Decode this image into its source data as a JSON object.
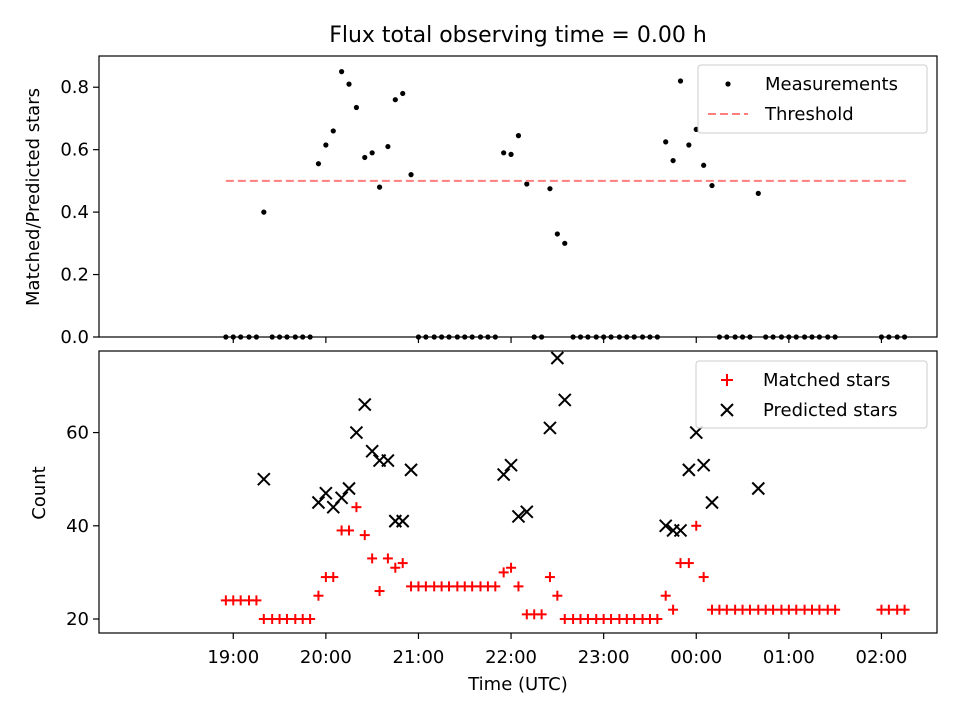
{
  "figure": {
    "title": "Flux total observing time = 0.00 h",
    "xlabel": "Time (UTC)",
    "x_ticks": [
      "19:00",
      "20:00",
      "21:00",
      "22:00",
      "23:00",
      "00:00",
      "01:00",
      "02:00"
    ]
  },
  "chart_data": [
    {
      "type": "scatter",
      "ylabel": "Matched/Predicted stars",
      "xlim_hours": [
        17.55,
        26.6
      ],
      "ylim": [
        0,
        0.9
      ],
      "y_ticks": [
        "0.0",
        "0.2",
        "0.4",
        "0.6",
        "0.8"
      ],
      "legend_position": "top-right",
      "legend": [
        "Measurements",
        "Threshold"
      ],
      "threshold": {
        "name": "Threshold",
        "value": 0.5,
        "x_range_hours": [
          18.92,
          26.27
        ],
        "color": "#ff7f7f"
      },
      "series": [
        {
          "name": "Measurements",
          "color": "#000000",
          "points": [
            [
              18.92,
              0
            ],
            [
              19.0,
              0
            ],
            [
              19.08,
              0
            ],
            [
              19.17,
              0
            ],
            [
              19.25,
              0
            ],
            [
              19.33,
              0.4
            ],
            [
              19.42,
              0
            ],
            [
              19.5,
              0
            ],
            [
              19.58,
              0
            ],
            [
              19.67,
              0
            ],
            [
              19.75,
              0
            ],
            [
              19.83,
              0
            ],
            [
              19.92,
              0.555
            ],
            [
              20.0,
              0.615
            ],
            [
              20.08,
              0.66
            ],
            [
              20.17,
              0.85
            ],
            [
              20.25,
              0.81
            ],
            [
              20.33,
              0.735
            ],
            [
              20.42,
              0.575
            ],
            [
              20.5,
              0.59
            ],
            [
              20.58,
              0.48
            ],
            [
              20.67,
              0.61
            ],
            [
              20.75,
              0.76
            ],
            [
              20.83,
              0.78
            ],
            [
              20.92,
              0.52
            ],
            [
              21.0,
              0
            ],
            [
              21.08,
              0
            ],
            [
              21.17,
              0
            ],
            [
              21.25,
              0
            ],
            [
              21.33,
              0
            ],
            [
              21.42,
              0
            ],
            [
              21.5,
              0
            ],
            [
              21.58,
              0
            ],
            [
              21.67,
              0
            ],
            [
              21.75,
              0
            ],
            [
              21.83,
              0
            ],
            [
              21.92,
              0.59
            ],
            [
              22.0,
              0.585
            ],
            [
              22.08,
              0.645
            ],
            [
              22.17,
              0.49
            ],
            [
              22.25,
              0
            ],
            [
              22.33,
              0
            ],
            [
              22.42,
              0.475
            ],
            [
              22.5,
              0.33
            ],
            [
              22.58,
              0.3
            ],
            [
              22.67,
              0
            ],
            [
              22.75,
              0
            ],
            [
              22.83,
              0
            ],
            [
              22.92,
              0
            ],
            [
              23.0,
              0
            ],
            [
              23.08,
              0
            ],
            [
              23.17,
              0
            ],
            [
              23.25,
              0
            ],
            [
              23.33,
              0
            ],
            [
              23.42,
              0
            ],
            [
              23.5,
              0
            ],
            [
              23.58,
              0
            ],
            [
              23.67,
              0.625
            ],
            [
              23.75,
              0.565
            ],
            [
              23.83,
              0.82
            ],
            [
              23.92,
              0.615
            ],
            [
              24.0,
              0.665
            ],
            [
              24.08,
              0.55
            ],
            [
              24.17,
              0.485
            ],
            [
              24.25,
              0
            ],
            [
              24.33,
              0
            ],
            [
              24.42,
              0
            ],
            [
              24.5,
              0
            ],
            [
              24.58,
              0
            ],
            [
              24.67,
              0.46
            ],
            [
              24.75,
              0
            ],
            [
              24.83,
              0
            ],
            [
              24.92,
              0
            ],
            [
              25.0,
              0
            ],
            [
              25.08,
              0
            ],
            [
              25.17,
              0
            ],
            [
              25.25,
              0
            ],
            [
              25.33,
              0
            ],
            [
              25.42,
              0
            ],
            [
              25.5,
              0
            ],
            [
              26.0,
              0
            ],
            [
              26.08,
              0
            ],
            [
              26.17,
              0
            ],
            [
              26.25,
              0
            ]
          ]
        }
      ]
    },
    {
      "type": "scatter",
      "ylabel": "Count",
      "xlim_hours": [
        17.55,
        26.6
      ],
      "ylim": [
        17,
        77.5
      ],
      "y_ticks": [
        "20",
        "40",
        "60"
      ],
      "legend_position": "top-right",
      "legend": [
        "Matched stars",
        "Predicted stars"
      ],
      "series": [
        {
          "name": "Matched stars",
          "marker": "plus",
          "color": "#ff0000",
          "points": [
            [
              18.92,
              24
            ],
            [
              19.0,
              24
            ],
            [
              19.08,
              24
            ],
            [
              19.17,
              24
            ],
            [
              19.25,
              24
            ],
            [
              19.33,
              20
            ],
            [
              19.42,
              20
            ],
            [
              19.5,
              20
            ],
            [
              19.58,
              20
            ],
            [
              19.67,
              20
            ],
            [
              19.75,
              20
            ],
            [
              19.83,
              20
            ],
            [
              19.92,
              25
            ],
            [
              20.0,
              29
            ],
            [
              20.08,
              29
            ],
            [
              20.17,
              39
            ],
            [
              20.25,
              39
            ],
            [
              20.33,
              44
            ],
            [
              20.42,
              38
            ],
            [
              20.5,
              33
            ],
            [
              20.58,
              26
            ],
            [
              20.67,
              33
            ],
            [
              20.75,
              31
            ],
            [
              20.83,
              32
            ],
            [
              20.92,
              27
            ],
            [
              21.0,
              27
            ],
            [
              21.08,
              27
            ],
            [
              21.17,
              27
            ],
            [
              21.25,
              27
            ],
            [
              21.33,
              27
            ],
            [
              21.42,
              27
            ],
            [
              21.5,
              27
            ],
            [
              21.58,
              27
            ],
            [
              21.67,
              27
            ],
            [
              21.75,
              27
            ],
            [
              21.83,
              27
            ],
            [
              21.92,
              30
            ],
            [
              22.0,
              31
            ],
            [
              22.08,
              27
            ],
            [
              22.17,
              21
            ],
            [
              22.25,
              21
            ],
            [
              22.33,
              21
            ],
            [
              22.42,
              29
            ],
            [
              22.5,
              25
            ],
            [
              22.58,
              20
            ],
            [
              22.67,
              20
            ],
            [
              22.75,
              20
            ],
            [
              22.83,
              20
            ],
            [
              22.92,
              20
            ],
            [
              23.0,
              20
            ],
            [
              23.08,
              20
            ],
            [
              23.17,
              20
            ],
            [
              23.25,
              20
            ],
            [
              23.33,
              20
            ],
            [
              23.42,
              20
            ],
            [
              23.5,
              20
            ],
            [
              23.58,
              20
            ],
            [
              23.67,
              25
            ],
            [
              23.75,
              22
            ],
            [
              23.83,
              32
            ],
            [
              23.92,
              32
            ],
            [
              24.0,
              40
            ],
            [
              24.08,
              29
            ],
            [
              24.17,
              22
            ],
            [
              24.25,
              22
            ],
            [
              24.33,
              22
            ],
            [
              24.42,
              22
            ],
            [
              24.5,
              22
            ],
            [
              24.58,
              22
            ],
            [
              24.67,
              22
            ],
            [
              24.75,
              22
            ],
            [
              24.83,
              22
            ],
            [
              24.92,
              22
            ],
            [
              25.0,
              22
            ],
            [
              25.08,
              22
            ],
            [
              25.17,
              22
            ],
            [
              25.25,
              22
            ],
            [
              25.33,
              22
            ],
            [
              25.42,
              22
            ],
            [
              25.5,
              22
            ],
            [
              26.0,
              22
            ],
            [
              26.08,
              22
            ],
            [
              26.17,
              22
            ],
            [
              26.25,
              22
            ]
          ]
        },
        {
          "name": "Predicted stars",
          "marker": "x",
          "color": "#000000",
          "points": [
            [
              19.33,
              50
            ],
            [
              19.92,
              45
            ],
            [
              20.0,
              47
            ],
            [
              20.08,
              44
            ],
            [
              20.17,
              46
            ],
            [
              20.25,
              48
            ],
            [
              20.33,
              60
            ],
            [
              20.42,
              66
            ],
            [
              20.5,
              56
            ],
            [
              20.58,
              54
            ],
            [
              20.67,
              54
            ],
            [
              20.75,
              41
            ],
            [
              20.83,
              41
            ],
            [
              20.92,
              52
            ],
            [
              21.92,
              51
            ],
            [
              22.0,
              53
            ],
            [
              22.08,
              42
            ],
            [
              22.17,
              43
            ],
            [
              22.42,
              61
            ],
            [
              22.5,
              76
            ],
            [
              22.58,
              67
            ],
            [
              23.67,
              40
            ],
            [
              23.75,
              39
            ],
            [
              23.83,
              39
            ],
            [
              23.92,
              52
            ],
            [
              24.0,
              60
            ],
            [
              24.08,
              53
            ],
            [
              24.17,
              45
            ],
            [
              24.67,
              48
            ]
          ]
        }
      ]
    }
  ]
}
